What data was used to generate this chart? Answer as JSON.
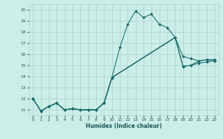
{
  "title": "",
  "xlabel": "Humidex (Indice chaleur)",
  "background_color": "#cceee8",
  "grid_color": "#aacccc",
  "line_color": "#1a6b6b",
  "xlim": [
    -0.5,
    23.5
  ],
  "ylim": [
    10.5,
    20.5
  ],
  "xticks": [
    0,
    1,
    2,
    3,
    4,
    5,
    6,
    7,
    8,
    9,
    10,
    11,
    12,
    13,
    14,
    15,
    16,
    17,
    18,
    19,
    20,
    21,
    22,
    23
  ],
  "yticks": [
    11,
    12,
    13,
    14,
    15,
    16,
    17,
    18,
    19,
    20
  ],
  "series": [
    {
      "x": [
        0,
        1,
        2,
        3,
        4,
        5,
        6,
        7,
        8,
        9,
        10,
        11,
        12,
        13,
        14,
        15,
        16,
        17,
        18
      ],
      "y": [
        12.0,
        10.9,
        11.3,
        11.6,
        11.0,
        11.1,
        11.0,
        11.0,
        11.0,
        11.6,
        13.9,
        16.6,
        18.7,
        19.9,
        19.3,
        19.6,
        18.7,
        18.4,
        17.5
      ]
    },
    {
      "x": [
        0,
        1,
        2,
        3,
        4,
        5,
        6,
        7,
        8,
        9,
        10,
        18,
        19,
        20,
        21,
        22,
        23
      ],
      "y": [
        12.0,
        10.9,
        11.3,
        11.6,
        11.0,
        11.1,
        11.0,
        11.0,
        11.0,
        11.6,
        13.9,
        17.5,
        15.8,
        15.6,
        15.4,
        15.5,
        15.5
      ]
    },
    {
      "x": [
        0,
        1,
        2,
        3,
        4,
        5,
        6,
        7,
        8,
        9,
        10,
        18,
        19,
        20,
        21,
        22,
        23
      ],
      "y": [
        12.0,
        10.9,
        11.3,
        11.6,
        11.0,
        11.1,
        11.0,
        11.0,
        11.0,
        11.6,
        13.9,
        17.5,
        14.9,
        15.0,
        15.4,
        15.5,
        15.5
      ]
    },
    {
      "x": [
        0,
        1,
        2,
        3,
        4,
        5,
        6,
        7,
        8,
        9,
        10,
        18,
        19,
        20,
        21,
        22,
        23
      ],
      "y": [
        12.0,
        10.9,
        11.3,
        11.6,
        11.0,
        11.1,
        11.0,
        11.0,
        11.0,
        11.6,
        13.9,
        17.5,
        14.9,
        15.0,
        15.2,
        15.3,
        15.4
      ]
    }
  ],
  "markersize": 2.0,
  "linewidth": 0.8
}
